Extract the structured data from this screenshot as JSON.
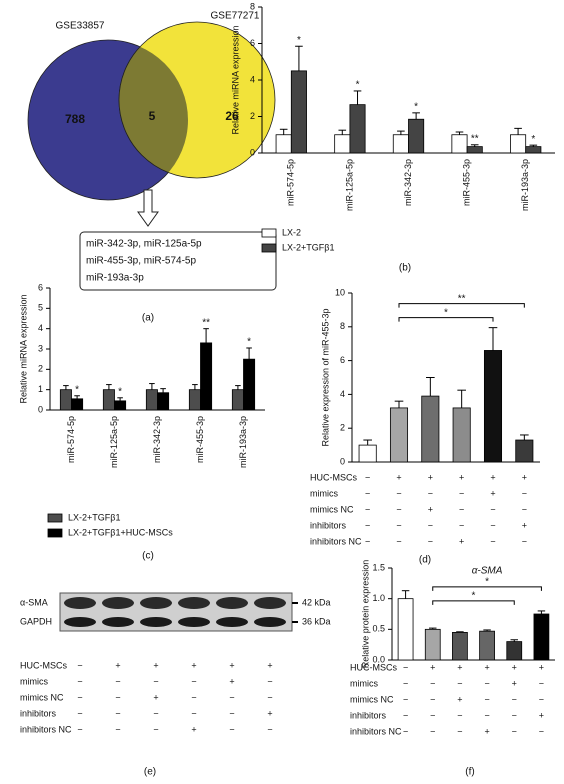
{
  "venn": {
    "panel": "(a)",
    "sets": [
      {
        "name": "GSE33857",
        "count": 788,
        "color": "#3b3b8f"
      },
      {
        "name": "GSE77271",
        "count": 26,
        "color": "#f2e33a"
      }
    ],
    "overlap": {
      "count": 5,
      "color": "#7d7a33"
    },
    "shared": [
      "miR-342-3p, miR-125a-5p",
      "miR-455-3p, miR-574-5p",
      "miR-193a-3p"
    ]
  },
  "chart_data": [
    {
      "type": "bar",
      "panel": "(b)",
      "ylabel": "Relative miRNA expression",
      "categories": [
        "miR-574-5p",
        "miR-125a-5p",
        "miR-342-3p",
        "miR-455-3p",
        "miR-193a-3p"
      ],
      "ylim": [
        0,
        8
      ],
      "yticks": [
        0,
        2,
        4,
        6,
        8
      ],
      "series": [
        {
          "name": "LX-2",
          "color": "#ffffff",
          "values": [
            1,
            1,
            1,
            1,
            1
          ],
          "errors": [
            0.3,
            0.25,
            0.2,
            0.15,
            0.35
          ]
        },
        {
          "name": "LX-2+TGFβ1",
          "color": "#444444",
          "values": [
            4.5,
            2.65,
            1.85,
            0.35,
            0.35
          ],
          "errors": [
            1.35,
            0.75,
            0.35,
            0.1,
            0.08
          ],
          "significance": [
            "*",
            "*",
            "*",
            "**",
            "*"
          ]
        }
      ]
    },
    {
      "type": "bar",
      "panel": "(c)",
      "ylabel": "Relative miRNA expression",
      "categories": [
        "miR-574-5p",
        "miR-125a-5p",
        "miR-342-3p",
        "miR-455-3p",
        "miR-193a-3p"
      ],
      "ylim": [
        0,
        6
      ],
      "yticks": [
        0,
        1,
        2,
        3,
        4,
        5,
        6
      ],
      "series": [
        {
          "name": "LX-2+TGFβ1",
          "color": "#4d4d4d",
          "values": [
            1,
            1,
            1,
            1,
            1
          ],
          "errors": [
            0.2,
            0.25,
            0.3,
            0.25,
            0.2
          ]
        },
        {
          "name": "LX-2+TGFβ1+HUC-MSCs",
          "color": "#000000",
          "values": [
            0.55,
            0.45,
            0.85,
            3.3,
            2.5
          ],
          "errors": [
            0.15,
            0.15,
            0.2,
            0.7,
            0.55
          ],
          "significance": [
            "*",
            "*",
            null,
            "**",
            "*"
          ]
        }
      ]
    },
    {
      "type": "bar",
      "panel": "(d)",
      "ylabel": "Relative expression of miR-455-3p",
      "ylim": [
        0,
        10
      ],
      "yticks": [
        0,
        2,
        4,
        6,
        8,
        10
      ],
      "values": [
        1,
        3.2,
        3.9,
        3.2,
        6.6,
        1.3
      ],
      "errors": [
        0.3,
        0.4,
        1.1,
        1.05,
        1.35,
        0.3
      ],
      "colors": [
        "#ffffff",
        "#a6a6a6",
        "#6e6e6e",
        "#8c8c8c",
        "#111111",
        "#3a3a3a"
      ],
      "brackets": [
        {
          "from": 1,
          "to": 4,
          "label": "*"
        },
        {
          "from": 1,
          "to": 5,
          "label": "**"
        }
      ],
      "treatments": [
        {
          "label": "HUC-MSCs",
          "signs": [
            "−",
            "+",
            "+",
            "+",
            "+",
            "+"
          ]
        },
        {
          "label": "mimics",
          "signs": [
            "−",
            "−",
            "−",
            "−",
            "+",
            "−"
          ]
        },
        {
          "label": "mimics NC",
          "signs": [
            "−",
            "−",
            "+",
            "−",
            "−",
            "−"
          ]
        },
        {
          "label": "inhibitors",
          "signs": [
            "−",
            "−",
            "−",
            "−",
            "−",
            "+"
          ]
        },
        {
          "label": "inhibitors NC",
          "signs": [
            "−",
            "−",
            "−",
            "+",
            "−",
            "−"
          ]
        }
      ]
    },
    {
      "type": "bar",
      "panel": "(f)",
      "ylabel": "Relative protein expression",
      "annotation": "α-SMA",
      "ylim": [
        0,
        1.5
      ],
      "yticks": [
        {
          "value": 0,
          "label": "0.0"
        },
        0.5,
        {
          "value": 1,
          "label": "1.0"
        },
        1.5
      ],
      "values": [
        1.0,
        0.5,
        0.45,
        0.47,
        0.3,
        0.75
      ],
      "errors": [
        0.13,
        0.02,
        0.01,
        0.02,
        0.03,
        0.05
      ],
      "colors": [
        "#ffffff",
        "#a6a6a6",
        "#555555",
        "#666666",
        "#333333",
        "#000000"
      ],
      "brackets": [
        {
          "from": 1,
          "to": 4,
          "label": "*"
        },
        {
          "from": 1,
          "to": 5,
          "label": "*"
        }
      ],
      "treatments": [
        {
          "label": "HUC-MSCs",
          "signs": [
            "−",
            "+",
            "+",
            "+",
            "+",
            "+"
          ]
        },
        {
          "label": "mimics",
          "signs": [
            "−",
            "−",
            "−",
            "−",
            "+",
            "−"
          ]
        },
        {
          "label": "mimics NC",
          "signs": [
            "−",
            "−",
            "+",
            "−",
            "−",
            "−"
          ]
        },
        {
          "label": "inhibitors",
          "signs": [
            "−",
            "−",
            "−",
            "−",
            "−",
            "+"
          ]
        },
        {
          "label": "inhibitors NC",
          "signs": [
            "−",
            "−",
            "−",
            "+",
            "−",
            "−"
          ]
        }
      ]
    }
  ],
  "blot": {
    "panel": "(e)",
    "bands": [
      "α-SMA",
      "GAPDH"
    ],
    "sizes": [
      "42 kDa",
      "36 kDa"
    ],
    "treatments": [
      {
        "label": "HUC-MSCs",
        "signs": [
          "−",
          "+",
          "+",
          "+",
          "+",
          "+"
        ]
      },
      {
        "label": "mimics",
        "signs": [
          "−",
          "−",
          "−",
          "−",
          "+",
          "−"
        ]
      },
      {
        "label": "mimics NC",
        "signs": [
          "−",
          "−",
          "+",
          "−",
          "−",
          "−"
        ]
      },
      {
        "label": "inhibitors",
        "signs": [
          "−",
          "−",
          "−",
          "−",
          "−",
          "+"
        ]
      },
      {
        "label": "inhibitors NC",
        "signs": [
          "−",
          "−",
          "−",
          "+",
          "−",
          "−"
        ]
      }
    ]
  }
}
